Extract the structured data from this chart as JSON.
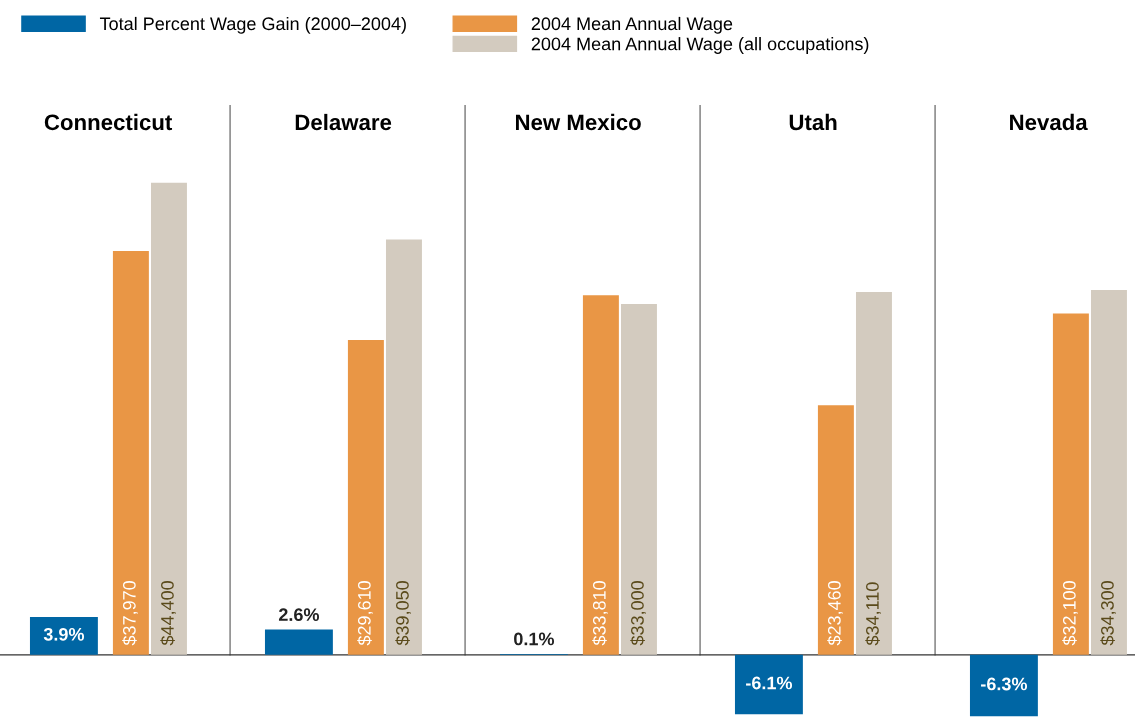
{
  "chart_data": {
    "type": "bar",
    "categories": [
      "Connecticut",
      "Delaware",
      "New Mexico",
      "Utah",
      "Nevada"
    ],
    "series": [
      {
        "name": "Total Percent Wage Gain (2000–2004)",
        "color": "#0066a4",
        "values": [
          3.9,
          2.6,
          0.1,
          -6.1,
          -6.3
        ],
        "value_labels": [
          "3.9%",
          "2.6%",
          "0.1%",
          "-6.1%",
          "-6.3%"
        ]
      },
      {
        "name": "2004 Mean Annual Wage",
        "color": "#e99645",
        "axis": "y2",
        "values": [
          37970,
          29610,
          33810,
          23460,
          32100
        ],
        "value_labels": [
          "$37,970",
          "$29,610",
          "$33,810",
          "$23,460",
          "$32,100"
        ]
      },
      {
        "name": "2004 Mean Annual Wage (all occupations)",
        "color": "#d3cbbf",
        "axis": "y2",
        "values": [
          44400,
          39050,
          33000,
          34110,
          34300
        ],
        "value_labels": [
          "$44,400",
          "$39,050",
          "$33,000",
          "$34,110",
          "$34,300"
        ]
      }
    ],
    "legend": "top left"
  }
}
